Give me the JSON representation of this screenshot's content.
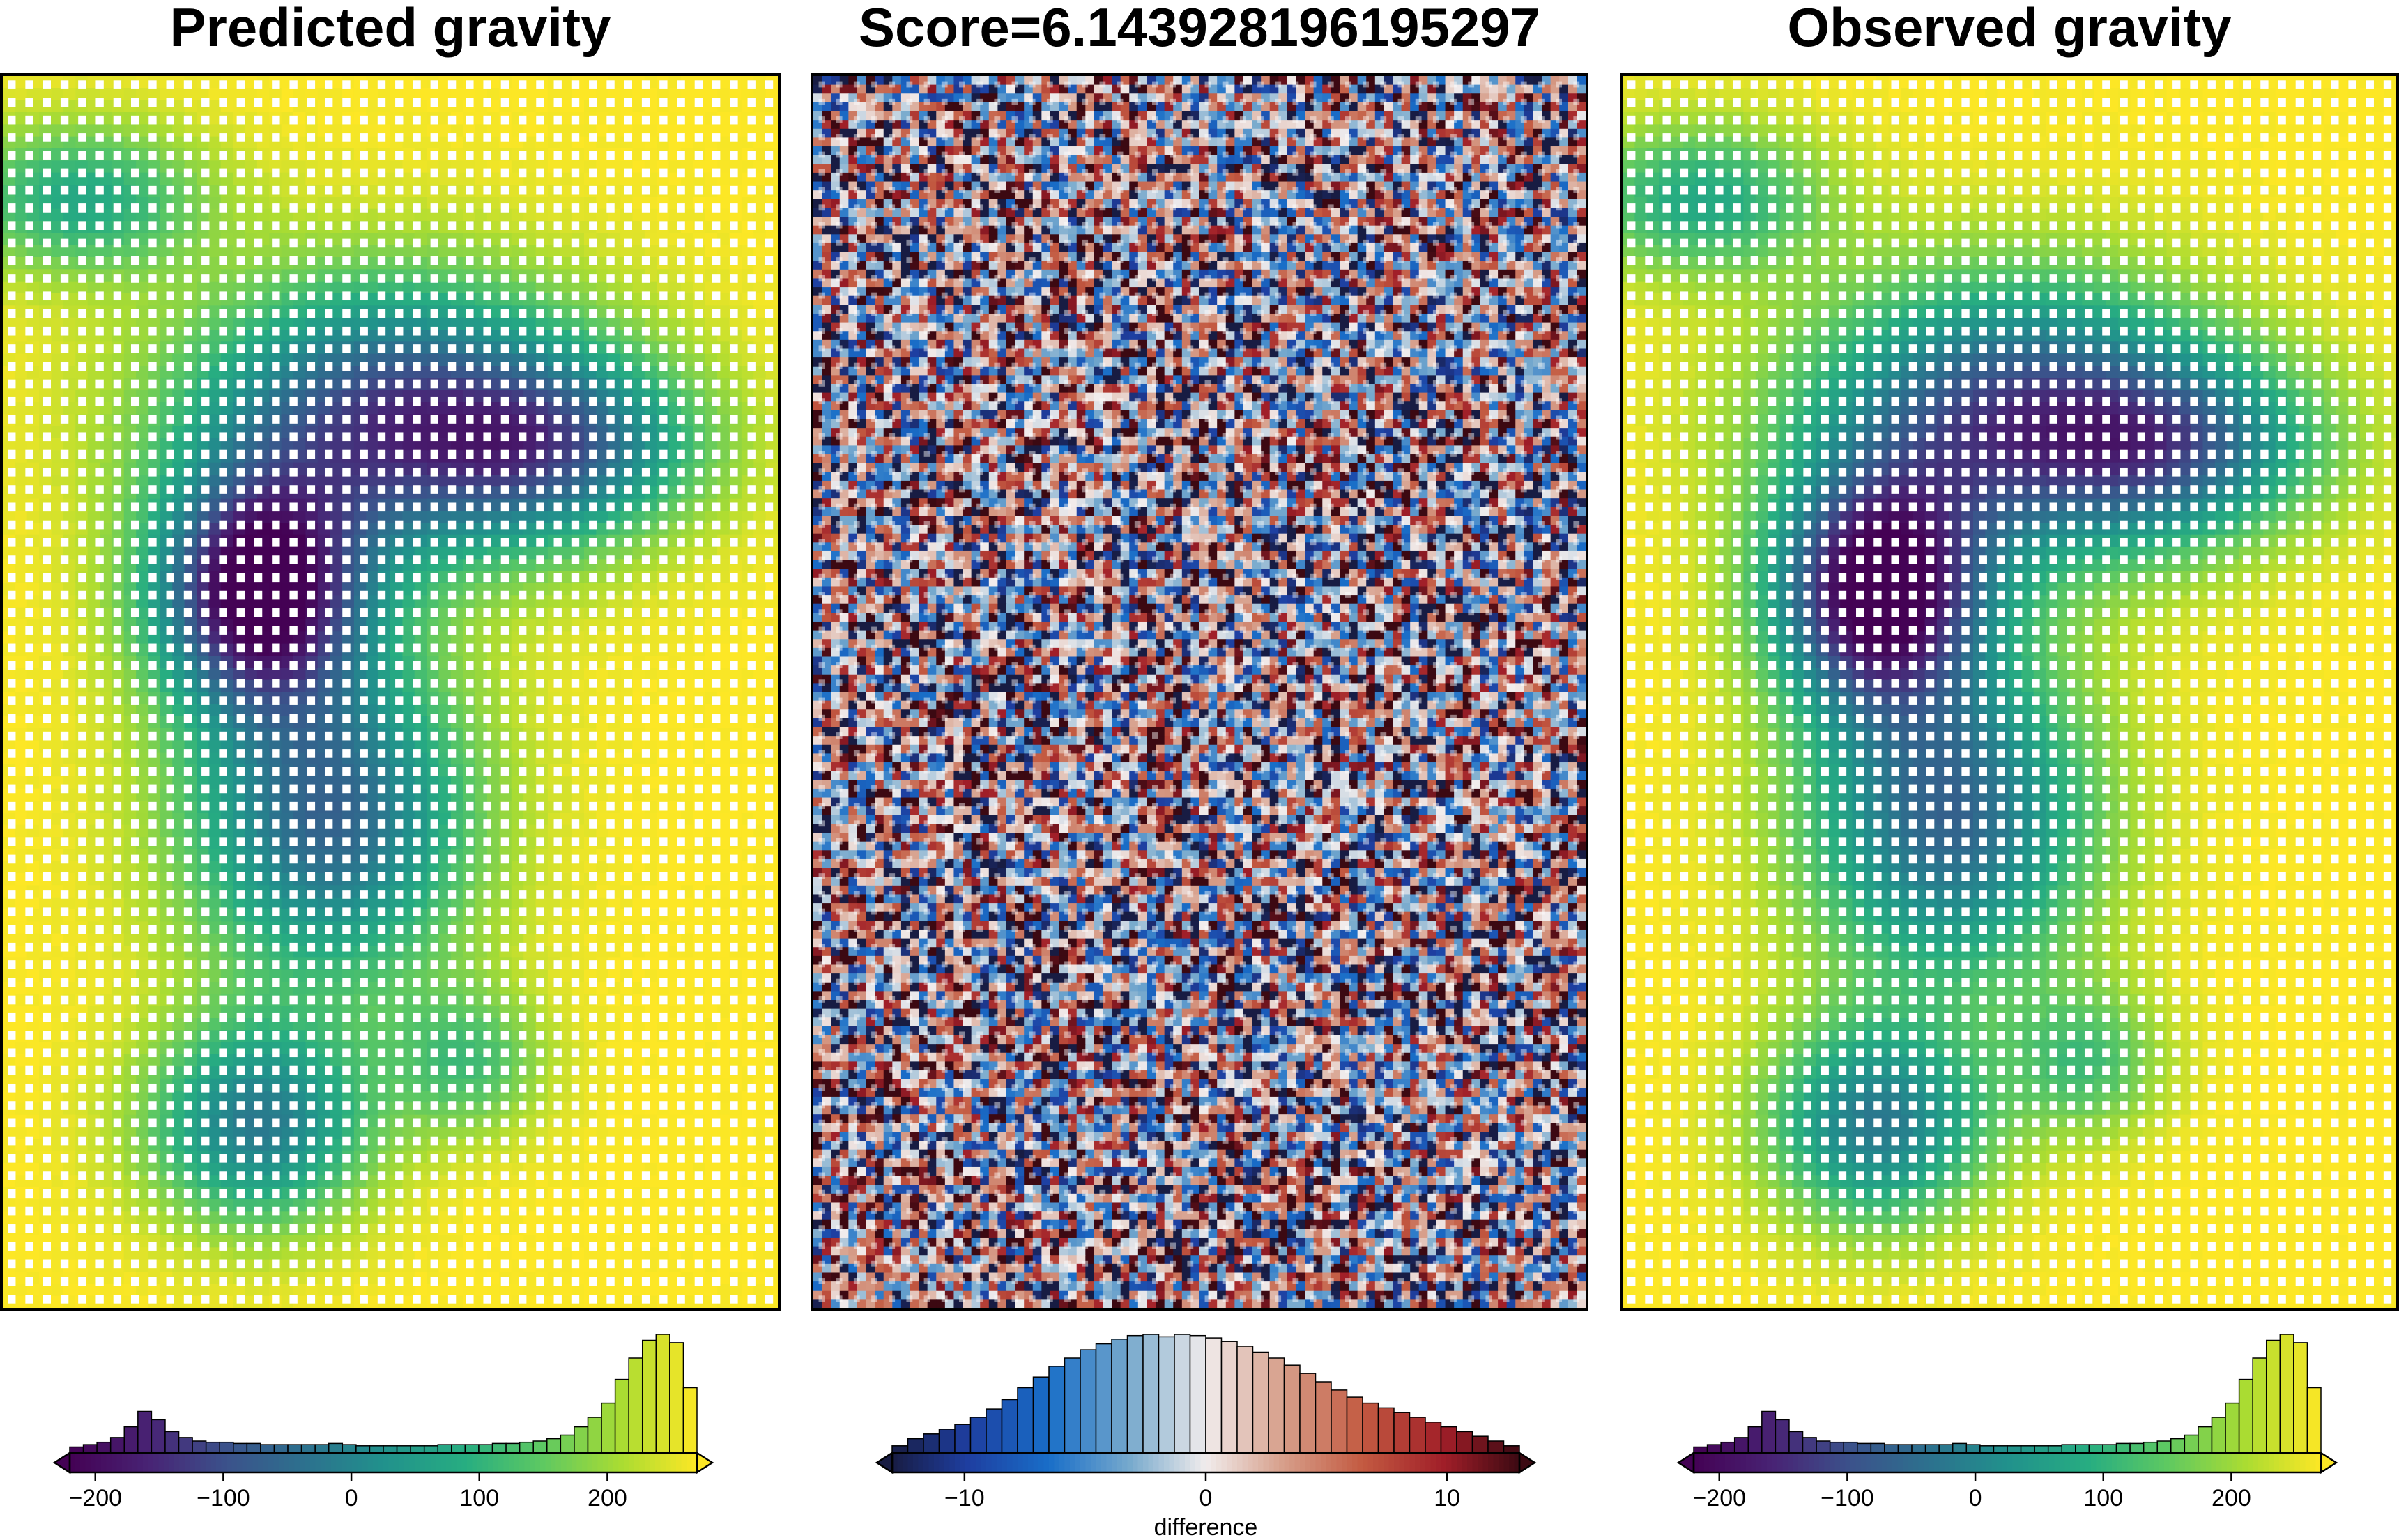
{
  "chart_data": [
    {
      "type": "heatmap",
      "title": "Predicted gravity",
      "colormap": "viridis",
      "grid": true,
      "colorbar": {
        "ticks": [
          -200,
          -100,
          0,
          100,
          200
        ],
        "tick_labels": [
          "−200",
          "−100",
          "0",
          "100",
          "200"
        ],
        "range": [
          -220,
          270
        ],
        "xlabel": "",
        "histogram": true
      }
    },
    {
      "type": "heatmap",
      "title": "Score=6.143928196195297",
      "colormap": "balance",
      "grid": true,
      "colorbar": {
        "ticks": [
          -10,
          0,
          10
        ],
        "tick_labels": [
          "−10",
          "0",
          "10"
        ],
        "range": [
          -13,
          13
        ],
        "xlabel": "difference",
        "histogram": true
      }
    },
    {
      "type": "heatmap",
      "title": "Observed gravity",
      "colormap": "viridis",
      "grid": true,
      "colorbar": {
        "ticks": [
          -200,
          -100,
          0,
          100,
          200
        ],
        "tick_labels": [
          "−200",
          "−100",
          "0",
          "100",
          "200"
        ],
        "range": [
          -220,
          270
        ],
        "xlabel": "",
        "histogram": true
      }
    }
  ]
}
